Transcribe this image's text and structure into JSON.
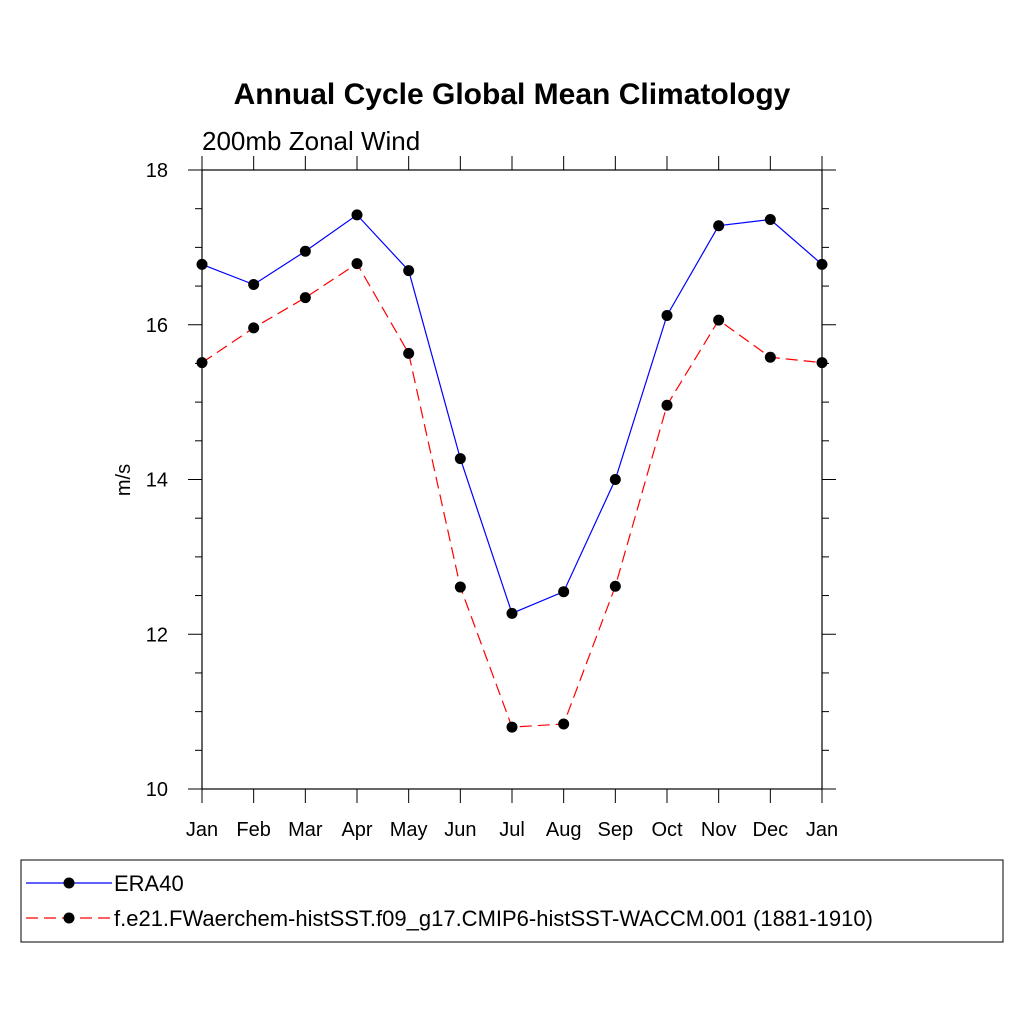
{
  "chart_data": {
    "type": "line",
    "title": "Annual Cycle Global Mean Climatology",
    "subtitle": "200mb Zonal Wind",
    "xlabel": "",
    "ylabel": "m/s",
    "categories": [
      "Jan",
      "Feb",
      "Mar",
      "Apr",
      "May",
      "Jun",
      "Jul",
      "Aug",
      "Sep",
      "Oct",
      "Nov",
      "Dec",
      "Jan"
    ],
    "ylim": [
      10,
      18
    ],
    "yticks": [
      10,
      12,
      14,
      16,
      18
    ],
    "series": [
      {
        "name": "ERA40",
        "color": "#0000ff",
        "dash": "solid",
        "marker": "filled-circle",
        "values": [
          16.78,
          16.52,
          16.95,
          17.42,
          16.7,
          14.27,
          12.27,
          12.55,
          14.0,
          16.12,
          17.28,
          17.36,
          16.78
        ]
      },
      {
        "name": "f.e21.FWaerchem-histSST.f09_g17.CMIP6-histSST-WACCM.001 (1881-1910)",
        "color": "#ff0000",
        "dash": "dashed",
        "marker": "filled-circle",
        "values": [
          15.51,
          15.96,
          16.35,
          16.79,
          15.63,
          12.61,
          10.8,
          10.84,
          12.62,
          14.96,
          16.06,
          15.58,
          15.51
        ]
      }
    ],
    "grid": false,
    "legend_position": "bottom"
  }
}
